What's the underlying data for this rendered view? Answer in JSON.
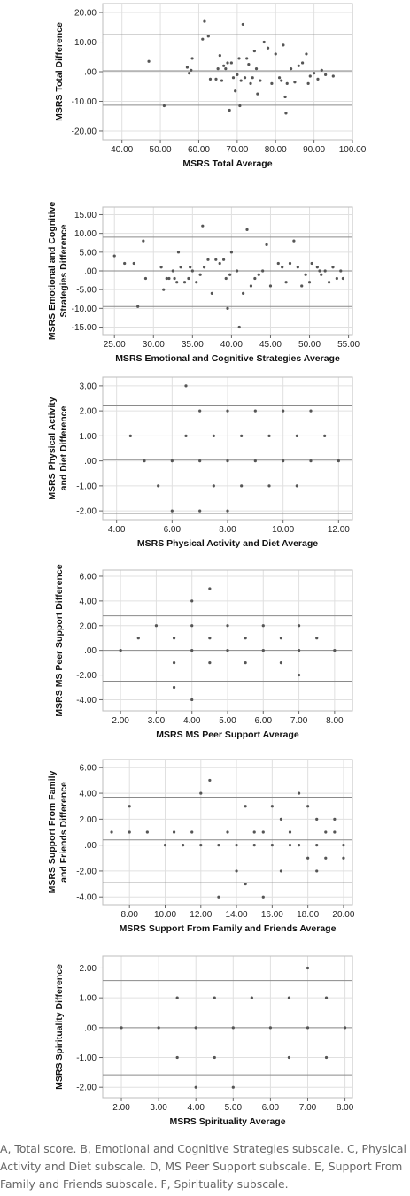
{
  "caption": {
    "line1": "A, Total score. B, Emotional and Cognitive Strategies subscale. C, Physical",
    "line2": "Activity and Diet subscale. D, MS Peer Support subscale. E, Support From",
    "line3": "Family and Friends subscale. F, Spirituality subscale."
  },
  "chart_data": [
    {
      "type": "scatter",
      "title": "",
      "xlabel": "MSRS Total Average",
      "ylabel": [
        "MSRS Total Difference"
      ],
      "xlim": [
        35,
        100
      ],
      "ylim": [
        -23,
        23
      ],
      "xticks": [
        40,
        50,
        60,
        70,
        80,
        90,
        100
      ],
      "xtick_labels": [
        "40.00",
        "50.00",
        "60.00",
        "70.00",
        "80.00",
        "90.00",
        "100.00"
      ],
      "yticks": [
        20,
        10,
        0,
        -10,
        -20
      ],
      "ytick_labels": [
        "20.00",
        "10.00",
        ".00",
        "-10.00",
        "-20.00"
      ],
      "grid": true,
      "reference_lines": [
        12.5,
        0.3,
        -11.3
      ],
      "points": [
        [
          47,
          3.5
        ],
        [
          51,
          -11.5
        ],
        [
          57,
          1.5
        ],
        [
          57.5,
          -0.5
        ],
        [
          58,
          0.5
        ],
        [
          58.3,
          4.5
        ],
        [
          61,
          11
        ],
        [
          61.5,
          17
        ],
        [
          62.5,
          12
        ],
        [
          63,
          -2.5
        ],
        [
          64.5,
          -2.5
        ],
        [
          65,
          1
        ],
        [
          65.5,
          5.5
        ],
        [
          66,
          -3
        ],
        [
          66.5,
          2
        ],
        [
          67,
          1
        ],
        [
          67.5,
          3
        ],
        [
          68,
          -13
        ],
        [
          68.5,
          3
        ],
        [
          69,
          -2
        ],
        [
          69.5,
          -6.5
        ],
        [
          70,
          -1
        ],
        [
          70.5,
          4.5
        ],
        [
          70.7,
          -11.5
        ],
        [
          71,
          -3
        ],
        [
          71.5,
          16
        ],
        [
          72,
          -2
        ],
        [
          72.5,
          4.5
        ],
        [
          73,
          2.5
        ],
        [
          73.5,
          -4
        ],
        [
          74,
          -2
        ],
        [
          74.5,
          7
        ],
        [
          75,
          1
        ],
        [
          75.3,
          -7.5
        ],
        [
          76,
          -3
        ],
        [
          77,
          10
        ],
        [
          78,
          8
        ],
        [
          79,
          -4
        ],
        [
          80,
          6
        ],
        [
          81,
          -2
        ],
        [
          81.5,
          -3
        ],
        [
          82,
          9
        ],
        [
          82.5,
          -8.5
        ],
        [
          82.7,
          -14
        ],
        [
          83,
          -4
        ],
        [
          84,
          1
        ],
        [
          85,
          -3.5
        ],
        [
          86,
          2
        ],
        [
          87,
          3
        ],
        [
          88,
          6
        ],
        [
          88.5,
          -4
        ],
        [
          89,
          -1.5
        ],
        [
          90,
          -0.5
        ],
        [
          91,
          -2.5
        ],
        [
          92,
          0.5
        ],
        [
          93,
          -1
        ],
        [
          95,
          -1.5
        ]
      ]
    },
    {
      "type": "scatter",
      "title": "",
      "xlabel": "MSRS Emotional and Cognitive Strategies Average",
      "ylabel": [
        "MSRS Emotional and Cognitive",
        "Strategies Difference"
      ],
      "xlim": [
        23.5,
        55.5
      ],
      "ylim": [
        -17,
        17
      ],
      "xticks": [
        25,
        30,
        35,
        40,
        45,
        50,
        55
      ],
      "xtick_labels": [
        "25.00",
        "30.00",
        "35.00",
        "40.00",
        "45.00",
        "50.00",
        "55.00"
      ],
      "yticks": [
        15,
        10,
        5,
        0,
        -5,
        -10,
        -15
      ],
      "ytick_labels": [
        "15.00",
        "10.00",
        "5.00",
        ".00",
        "-5.00",
        "-10.00",
        "-15.00"
      ],
      "grid": true,
      "reference_lines": [
        9,
        0,
        -9.5
      ],
      "points": [
        [
          25,
          4
        ],
        [
          26.3,
          2
        ],
        [
          27.5,
          2
        ],
        [
          28,
          -9.5
        ],
        [
          28.7,
          8
        ],
        [
          29,
          -2
        ],
        [
          31,
          1
        ],
        [
          31.3,
          -5
        ],
        [
          31.7,
          -2
        ],
        [
          32,
          -2
        ],
        [
          32.5,
          0
        ],
        [
          32.7,
          -2
        ],
        [
          33,
          -3
        ],
        [
          33.2,
          5
        ],
        [
          33.5,
          1
        ],
        [
          34,
          -3
        ],
        [
          34.5,
          -2
        ],
        [
          34.7,
          1
        ],
        [
          35,
          0
        ],
        [
          35.5,
          -3
        ],
        [
          36,
          -1
        ],
        [
          36.3,
          12
        ],
        [
          36.5,
          1
        ],
        [
          37,
          3
        ],
        [
          37.5,
          -6
        ],
        [
          38,
          3
        ],
        [
          38.5,
          2
        ],
        [
          39,
          3
        ],
        [
          39.3,
          -2
        ],
        [
          39.5,
          -10
        ],
        [
          39.8,
          -1
        ],
        [
          40,
          5
        ],
        [
          40.7,
          0
        ],
        [
          41,
          -15
        ],
        [
          41.5,
          -6
        ],
        [
          42,
          11
        ],
        [
          42.5,
          -4
        ],
        [
          43,
          -2
        ],
        [
          43.5,
          -1
        ],
        [
          44,
          0
        ],
        [
          44.5,
          7
        ],
        [
          45,
          -4
        ],
        [
          46,
          2
        ],
        [
          46.5,
          1
        ],
        [
          47,
          -3
        ],
        [
          47.5,
          2
        ],
        [
          48,
          8
        ],
        [
          48.5,
          1
        ],
        [
          49,
          -4
        ],
        [
          49.5,
          -1
        ],
        [
          50,
          -3
        ],
        [
          50.3,
          2
        ],
        [
          51,
          1
        ],
        [
          51.3,
          0
        ],
        [
          51.5,
          -1
        ],
        [
          52,
          0
        ],
        [
          52.5,
          -3
        ],
        [
          53,
          1
        ],
        [
          53.5,
          -2
        ],
        [
          54,
          0
        ],
        [
          54.3,
          -2
        ]
      ]
    },
    {
      "type": "scatter",
      "title": "",
      "xlabel": "MSRS Physical Activity and Diet Average",
      "ylabel": [
        "MSRS Physical Activity",
        "and Diet Difference"
      ],
      "xlim": [
        3.5,
        12.5
      ],
      "ylim": [
        -2.35,
        3.35
      ],
      "xticks": [
        4,
        6,
        8,
        10,
        12
      ],
      "xtick_labels": [
        "4.00",
        "6.00",
        "8.00",
        "10.00",
        "12.00"
      ],
      "yticks": [
        3,
        2,
        1,
        0,
        -1,
        -2
      ],
      "ytick_labels": [
        "3.00",
        "2.00",
        "1.00",
        ".00",
        "-1.00",
        "-2.00"
      ],
      "grid": true,
      "reference_lines": [
        2.2,
        0.05,
        -2.1
      ],
      "points": [
        [
          4.5,
          1
        ],
        [
          5,
          0
        ],
        [
          5.5,
          -1
        ],
        [
          6,
          0
        ],
        [
          6,
          -2
        ],
        [
          6.5,
          3
        ],
        [
          6.5,
          1
        ],
        [
          7,
          2
        ],
        [
          7,
          0
        ],
        [
          7,
          -2
        ],
        [
          7.5,
          1
        ],
        [
          7.5,
          -1
        ],
        [
          8,
          2
        ],
        [
          8,
          0
        ],
        [
          8,
          -2
        ],
        [
          8.5,
          1
        ],
        [
          8.5,
          -1
        ],
        [
          9,
          2
        ],
        [
          9,
          0
        ],
        [
          9.5,
          1
        ],
        [
          9.5,
          -1
        ],
        [
          10,
          2
        ],
        [
          10,
          0
        ],
        [
          10.5,
          1
        ],
        [
          10.5,
          -1
        ],
        [
          11,
          2
        ],
        [
          11,
          0
        ],
        [
          11.5,
          1
        ],
        [
          12,
          0
        ]
      ]
    },
    {
      "type": "scatter",
      "title": "",
      "xlabel": "MSRS MS Peer Support Average",
      "ylabel": [
        "MSRS MS Peer Support Difference"
      ],
      "xlim": [
        1.5,
        8.5
      ],
      "ylim": [
        -4.9,
        6.5
      ],
      "xticks": [
        2,
        3,
        4,
        5,
        6,
        7,
        8
      ],
      "xtick_labels": [
        "2.00",
        "3.00",
        "4.00",
        "5.00",
        "6.00",
        "7.00",
        "8.00"
      ],
      "yticks": [
        6,
        4,
        2,
        0,
        -2,
        -4
      ],
      "ytick_labels": [
        "6.00",
        "4.00",
        "2.00",
        ".00",
        "-2.00",
        "-4.00"
      ],
      "grid": true,
      "reference_lines": [
        2.8,
        0,
        -2.5
      ],
      "points": [
        [
          2,
          0
        ],
        [
          2.5,
          1
        ],
        [
          3,
          2
        ],
        [
          3.5,
          1
        ],
        [
          3.5,
          -1
        ],
        [
          3.5,
          -3
        ],
        [
          4,
          4
        ],
        [
          4,
          2
        ],
        [
          4,
          0
        ],
        [
          4,
          -4
        ],
        [
          4.5,
          5
        ],
        [
          4.5,
          1
        ],
        [
          4.5,
          -1
        ],
        [
          5,
          2
        ],
        [
          5,
          0
        ],
        [
          5.5,
          1
        ],
        [
          5.5,
          -1
        ],
        [
          6,
          2
        ],
        [
          6,
          0
        ],
        [
          6.5,
          1
        ],
        [
          6.5,
          -1
        ],
        [
          7,
          2
        ],
        [
          7,
          0
        ],
        [
          7,
          -2
        ],
        [
          7.5,
          1
        ],
        [
          8,
          0
        ]
      ]
    },
    {
      "type": "scatter",
      "title": "",
      "xlabel": "MSRS Support From Family and Friends Average",
      "ylabel": [
        "MSRS Support From Family",
        "and Friends Difference"
      ],
      "xlim": [
        6.5,
        20.5
      ],
      "ylim": [
        -4.6,
        6.6
      ],
      "xticks": [
        8,
        10,
        12,
        14,
        16,
        18,
        20
      ],
      "xtick_labels": [
        "8.00",
        "10.00",
        "12.00",
        "14.00",
        "16.00",
        "18.00",
        "20.00"
      ],
      "yticks": [
        6,
        4,
        2,
        0,
        -2,
        -4
      ],
      "ytick_labels": [
        "6.00",
        "4.00",
        "2.00",
        ".00",
        "-2.00",
        "-4.00"
      ],
      "grid": true,
      "reference_lines": [
        3.7,
        0.4,
        -2.9
      ],
      "points": [
        [
          7,
          1
        ],
        [
          8,
          3
        ],
        [
          8,
          1
        ],
        [
          9,
          1
        ],
        [
          10,
          0
        ],
        [
          10.5,
          1
        ],
        [
          11,
          0
        ],
        [
          11.5,
          1
        ],
        [
          12,
          4
        ],
        [
          12,
          0
        ],
        [
          12.5,
          5
        ],
        [
          13,
          0
        ],
        [
          13,
          -4
        ],
        [
          13.5,
          1
        ],
        [
          14,
          0
        ],
        [
          14,
          -2
        ],
        [
          14.5,
          3
        ],
        [
          14.5,
          -3
        ],
        [
          15,
          1
        ],
        [
          15,
          0
        ],
        [
          15.5,
          1
        ],
        [
          15.5,
          -4
        ],
        [
          16,
          3
        ],
        [
          16,
          0
        ],
        [
          16.5,
          2
        ],
        [
          16.5,
          -2
        ],
        [
          17,
          1
        ],
        [
          17,
          0
        ],
        [
          17.5,
          4
        ],
        [
          17.5,
          0
        ],
        [
          18,
          3
        ],
        [
          18,
          -1
        ],
        [
          18.5,
          2
        ],
        [
          18.5,
          0
        ],
        [
          18.5,
          -2
        ],
        [
          19,
          1
        ],
        [
          19,
          -1
        ],
        [
          19.5,
          2
        ],
        [
          19.5,
          1
        ],
        [
          20,
          0
        ],
        [
          20,
          -1
        ]
      ]
    },
    {
      "type": "scatter",
      "title": "",
      "xlabel": "MSRS Spirituality Average",
      "ylabel": [
        "MSRS Spirituality Difference"
      ],
      "xlim": [
        1.5,
        8.2
      ],
      "ylim": [
        -2.35,
        2.4
      ],
      "xticks": [
        2,
        3,
        4,
        5,
        6,
        7,
        8
      ],
      "xtick_labels": [
        "2.00",
        "3.00",
        "4.00",
        "5.00",
        "6.00",
        "7.00",
        "8.00"
      ],
      "yticks": [
        2,
        1,
        0,
        -1,
        -2
      ],
      "ytick_labels": [
        "2.00",
        "1.00",
        ".00",
        "-1.00",
        "-2.00"
      ],
      "grid": true,
      "reference_lines": [
        1.58,
        0,
        -1.58
      ],
      "points": [
        [
          2,
          0
        ],
        [
          3,
          0
        ],
        [
          3.5,
          1
        ],
        [
          3.5,
          -1
        ],
        [
          4,
          0
        ],
        [
          4,
          -2
        ],
        [
          4.5,
          1
        ],
        [
          4.5,
          -1
        ],
        [
          5,
          0
        ],
        [
          5,
          -2
        ],
        [
          5.5,
          1
        ],
        [
          6,
          0
        ],
        [
          6.5,
          1
        ],
        [
          6.5,
          -1
        ],
        [
          7,
          2
        ],
        [
          7,
          0
        ],
        [
          7.5,
          1
        ],
        [
          7.5,
          -1
        ],
        [
          8,
          0
        ]
      ]
    }
  ]
}
